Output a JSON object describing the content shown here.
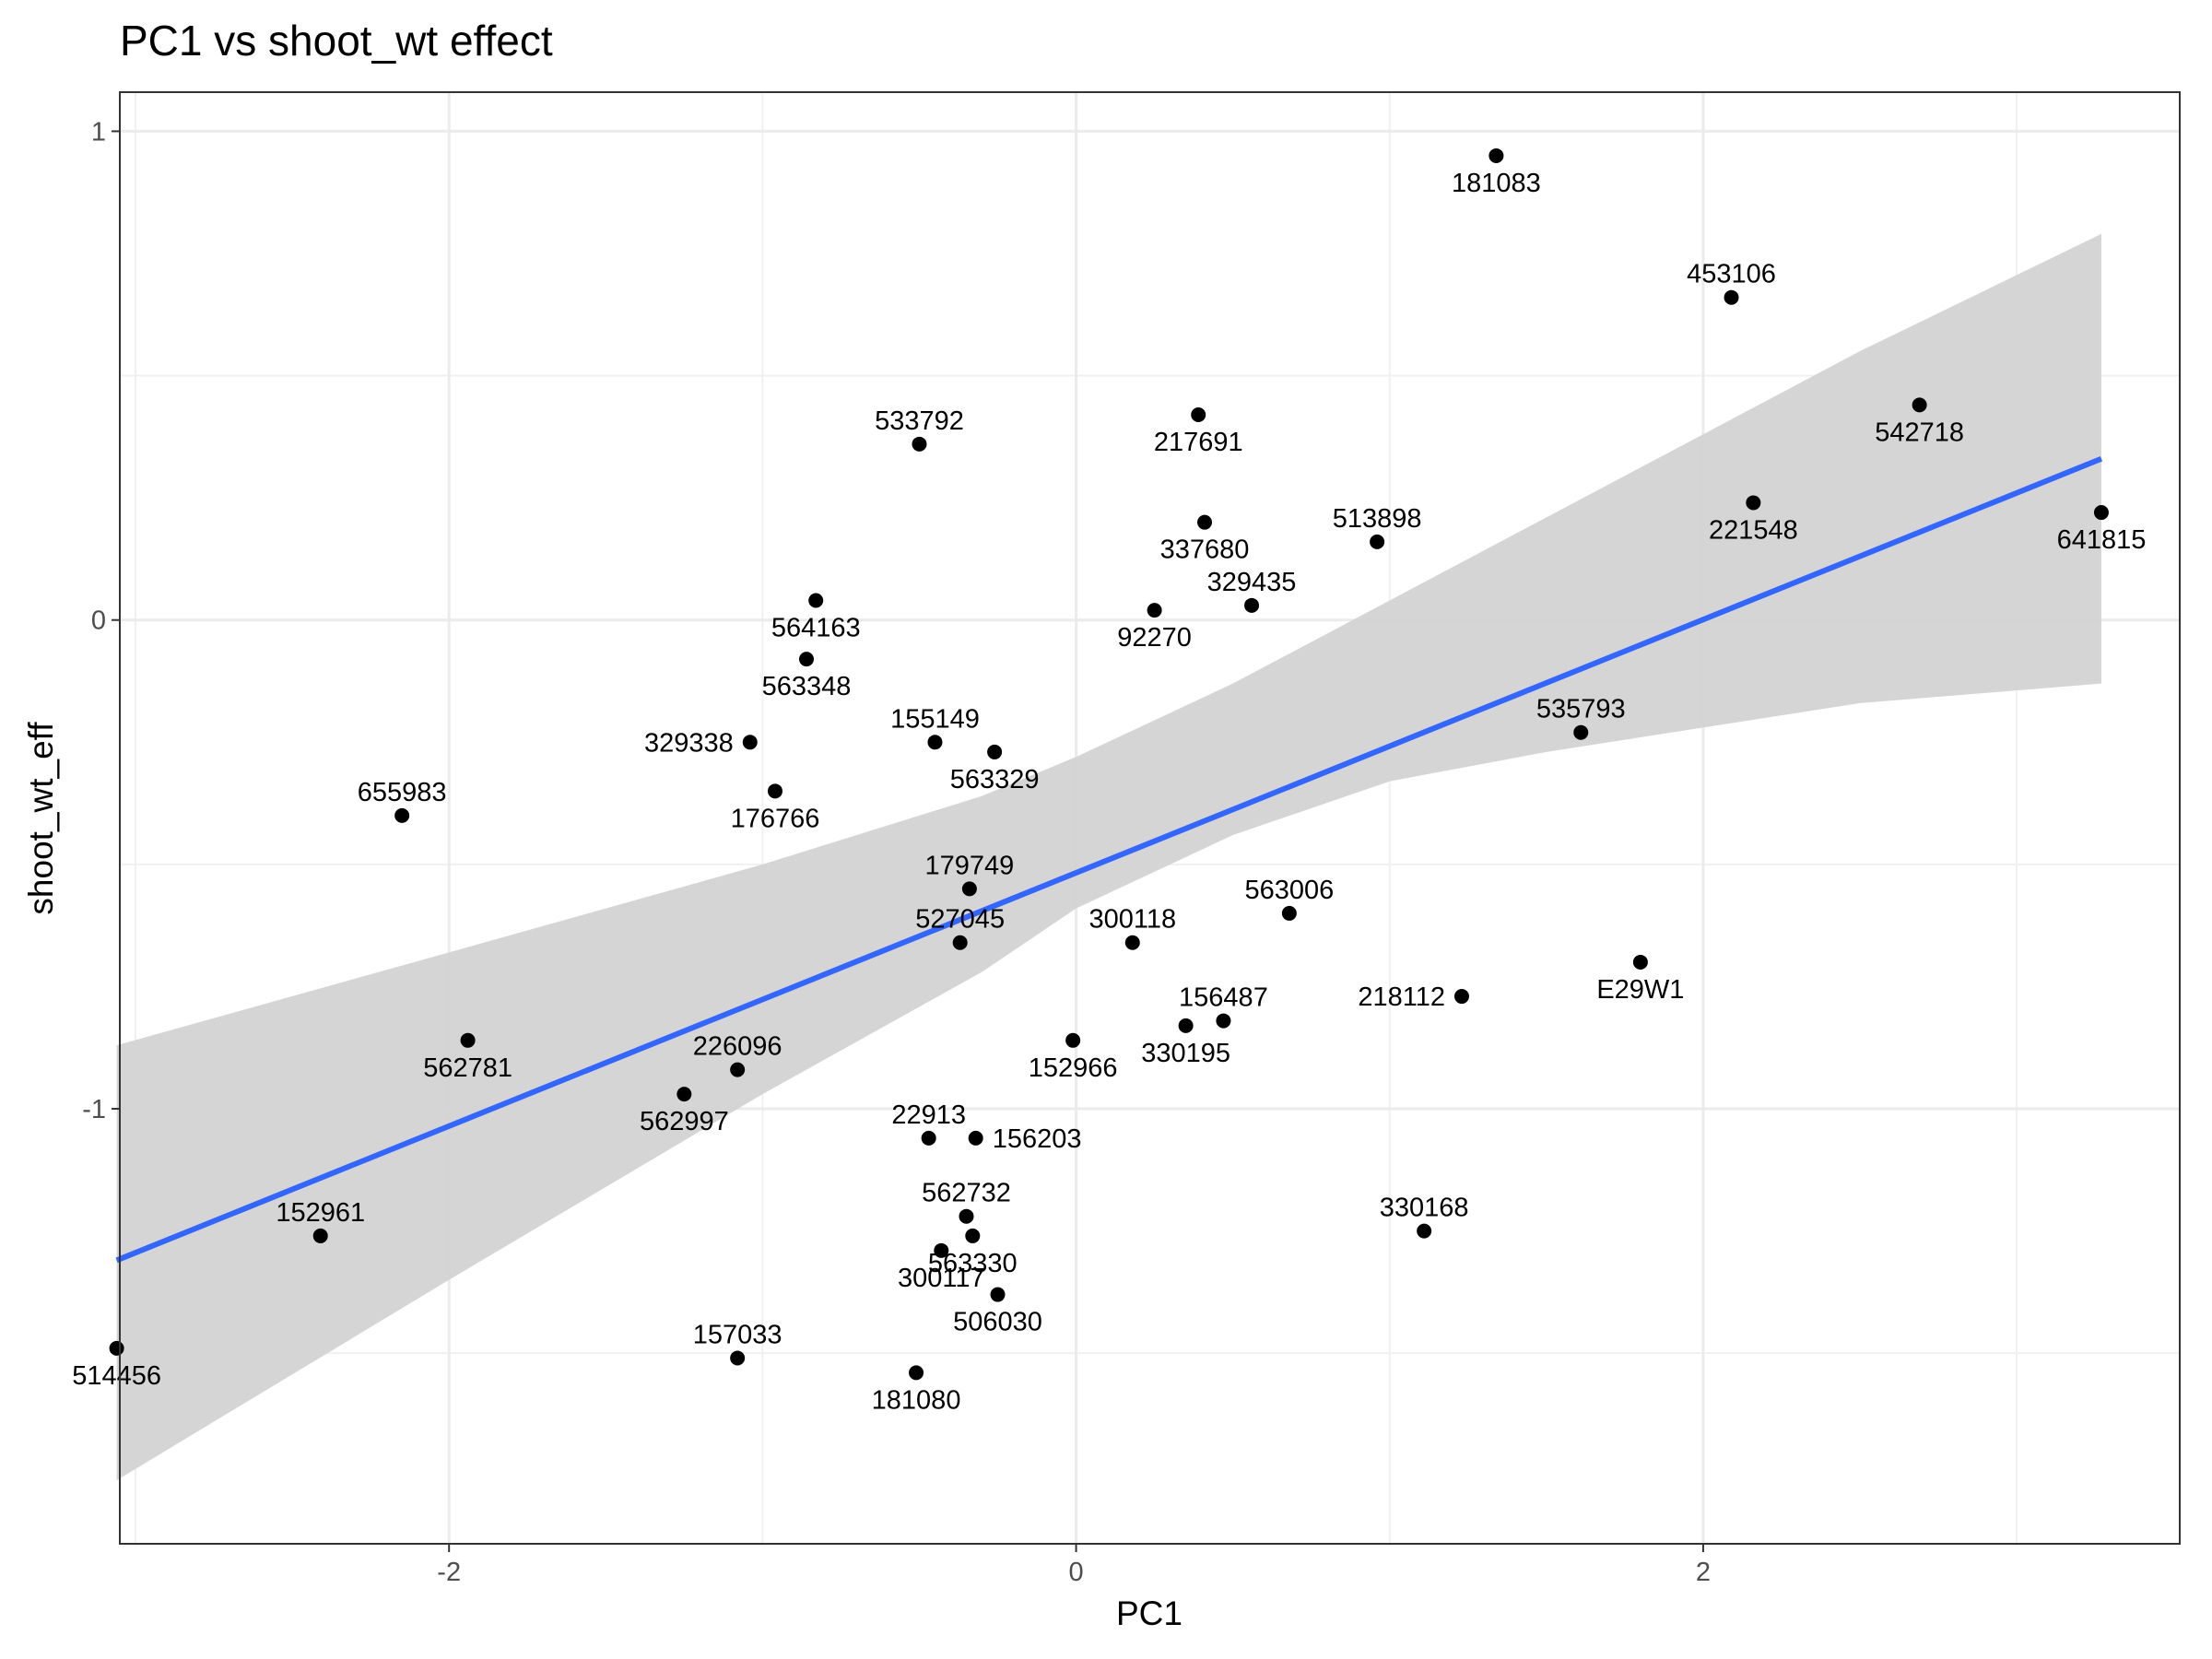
{
  "chart_data": {
    "type": "scatter",
    "title": "PC1 vs shoot_wt effect",
    "xlabel": "PC1",
    "ylabel": "shoot_wt_eff",
    "xlim": [
      -3.05,
      3.52
    ],
    "ylim": [
      -1.89,
      1.08
    ],
    "x_ticks": [
      -2,
      0,
      2
    ],
    "x_tick_labels": [
      "-2",
      "0",
      "2"
    ],
    "y_ticks": [
      -1,
      0,
      1
    ],
    "y_tick_labels": [
      "-1",
      "0",
      "1"
    ],
    "grid": true,
    "trend_line": {
      "x_start": -3.06,
      "y_start": -1.31,
      "x_end": 3.27,
      "y_end": 0.33,
      "color": "#3366FF"
    },
    "confidence_band": {
      "color": "#d3d3d3",
      "upper": [
        [
          -3.06,
          -0.87
        ],
        [
          -2.0,
          -0.68
        ],
        [
          -1.0,
          -0.5
        ],
        [
          -0.3,
          -0.36
        ],
        [
          0.0,
          -0.28
        ],
        [
          0.5,
          -0.13
        ],
        [
          1.0,
          0.04
        ],
        [
          1.5,
          0.21
        ],
        [
          2.0,
          0.38
        ],
        [
          2.5,
          0.55
        ],
        [
          3.27,
          0.79
        ]
      ],
      "lower": [
        [
          -3.06,
          -1.76
        ],
        [
          -2.0,
          -1.35
        ],
        [
          -1.0,
          -0.97
        ],
        [
          -0.3,
          -0.72
        ],
        [
          0.0,
          -0.59
        ],
        [
          0.5,
          -0.44
        ],
        [
          1.0,
          -0.33
        ],
        [
          1.5,
          -0.27
        ],
        [
          2.0,
          -0.22
        ],
        [
          2.5,
          -0.17
        ],
        [
          3.27,
          -0.13
        ]
      ]
    },
    "points": [
      {
        "label": "181083",
        "x": 1.34,
        "y": 0.95,
        "pos": "below"
      },
      {
        "label": "453106",
        "x": 2.09,
        "y": 0.66,
        "pos": "above"
      },
      {
        "label": "542718",
        "x": 2.69,
        "y": 0.44,
        "pos": "below"
      },
      {
        "label": "533792",
        "x": -0.5,
        "y": 0.36,
        "pos": "above"
      },
      {
        "label": "217691",
        "x": 0.39,
        "y": 0.42,
        "pos": "below"
      },
      {
        "label": "221548",
        "x": 2.16,
        "y": 0.24,
        "pos": "below"
      },
      {
        "label": "641815",
        "x": 3.27,
        "y": 0.22,
        "pos": "below"
      },
      {
        "label": "513898",
        "x": 0.96,
        "y": 0.16,
        "pos": "above"
      },
      {
        "label": "337680",
        "x": 0.41,
        "y": 0.2,
        "pos": "below"
      },
      {
        "label": "329435",
        "x": 0.56,
        "y": 0.03,
        "pos": "above"
      },
      {
        "label": "92270",
        "x": 0.25,
        "y": 0.02,
        "pos": "below"
      },
      {
        "label": "564163",
        "x": -0.83,
        "y": 0.04,
        "pos": "below"
      },
      {
        "label": "563348",
        "x": -0.86,
        "y": -0.08,
        "pos": "below"
      },
      {
        "label": "535793",
        "x": 1.61,
        "y": -0.23,
        "pos": "above"
      },
      {
        "label": "155149",
        "x": -0.45,
        "y": -0.25,
        "pos": "above"
      },
      {
        "label": "329338",
        "x": -1.04,
        "y": -0.25,
        "pos": "left"
      },
      {
        "label": "563329",
        "x": -0.26,
        "y": -0.27,
        "pos": "below"
      },
      {
        "label": "176766",
        "x": -0.96,
        "y": -0.35,
        "pos": "below"
      },
      {
        "label": "655983",
        "x": -2.15,
        "y": -0.4,
        "pos": "above"
      },
      {
        "label": "179749",
        "x": -0.34,
        "y": -0.55,
        "pos": "above"
      },
      {
        "label": "563006",
        "x": 0.68,
        "y": -0.6,
        "pos": "above"
      },
      {
        "label": "527045",
        "x": -0.37,
        "y": -0.66,
        "pos": "above"
      },
      {
        "label": "300118",
        "x": 0.18,
        "y": -0.66,
        "pos": "above"
      },
      {
        "label": "E29W1",
        "x": 1.8,
        "y": -0.7,
        "pos": "below"
      },
      {
        "label": "218112",
        "x": 1.23,
        "y": -0.77,
        "pos": "left"
      },
      {
        "label": "156487",
        "x": 0.47,
        "y": -0.82,
        "pos": "above"
      },
      {
        "label": "330195",
        "x": 0.35,
        "y": -0.83,
        "pos": "below"
      },
      {
        "label": "152966",
        "x": -0.01,
        "y": -0.86,
        "pos": "below"
      },
      {
        "label": "562781",
        "x": -1.94,
        "y": -0.86,
        "pos": "below"
      },
      {
        "label": "226096",
        "x": -1.08,
        "y": -0.92,
        "pos": "above"
      },
      {
        "label": "562997",
        "x": -1.25,
        "y": -0.97,
        "pos": "below"
      },
      {
        "label": "22913",
        "x": -0.47,
        "y": -1.06,
        "pos": "above"
      },
      {
        "label": "156203",
        "x": -0.32,
        "y": -1.06,
        "pos": "right"
      },
      {
        "label": "562732",
        "x": -0.35,
        "y": -1.22,
        "pos": "above"
      },
      {
        "label": "300117",
        "x": -0.43,
        "y": -1.29,
        "pos": "below"
      },
      {
        "label": "563330",
        "x": -0.33,
        "y": -1.26,
        "pos": "below"
      },
      {
        "label": "330168",
        "x": 1.11,
        "y": -1.25,
        "pos": "above"
      },
      {
        "label": "152961",
        "x": -2.41,
        "y": -1.26,
        "pos": "above"
      },
      {
        "label": "506030",
        "x": -0.25,
        "y": -1.38,
        "pos": "below"
      },
      {
        "label": "514456",
        "x": -3.06,
        "y": -1.49,
        "pos": "below"
      },
      {
        "label": "157033",
        "x": -1.08,
        "y": -1.51,
        "pos": "above"
      },
      {
        "label": "181080",
        "x": -0.51,
        "y": -1.54,
        "pos": "below"
      }
    ],
    "point_color": "#000000"
  }
}
